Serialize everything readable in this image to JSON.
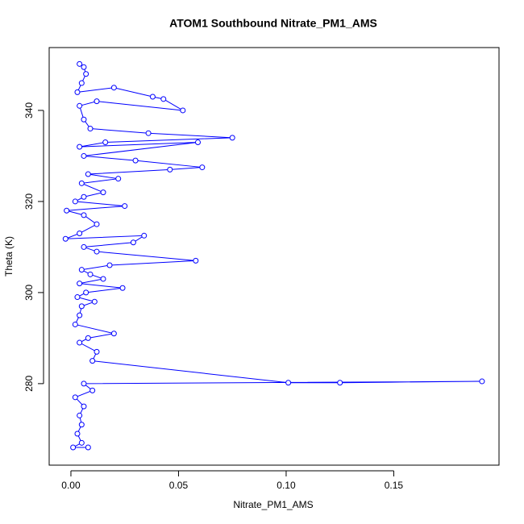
{
  "chart_data": {
    "type": "line",
    "title": "ATOM1 Southbound Nitrate_PM1_AMS",
    "x_label": "Nitrate_PM1_AMS",
    "y_label": "Theta (K)",
    "x": [
      0.004,
      0.006,
      0.007,
      0.005,
      0.003,
      0.02,
      0.038,
      0.043,
      0.052,
      0.012,
      0.004,
      0.006,
      0.009,
      0.036,
      0.075,
      0.016,
      0.004,
      0.059,
      0.006,
      0.03,
      0.061,
      0.046,
      0.008,
      0.022,
      0.005,
      0.015,
      0.006,
      0.002,
      0.025,
      -0.002,
      0.006,
      0.012,
      0.004,
      -0.0025,
      0.034,
      0.029,
      0.006,
      0.012,
      0.058,
      0.018,
      0.005,
      0.009,
      0.015,
      0.004,
      0.024,
      0.007,
      0.003,
      0.011,
      0.005,
      0.004,
      0.002,
      0.02,
      0.008,
      0.004,
      0.012,
      0.01,
      0.101,
      0.125,
      0.191,
      0.006,
      0.01,
      0.002,
      0.006,
      0.004,
      0.005,
      0.003,
      0.005,
      0.001,
      0.008
    ],
    "series": [
      {
        "name": "Nitrate_PM1_AMS",
        "color": "#0000ff",
        "values": [
          350.2,
          349.5,
          348,
          346,
          344,
          345,
          343,
          342.5,
          340,
          342,
          341,
          338,
          336,
          335,
          334,
          333,
          332,
          333,
          330,
          329,
          327.5,
          327,
          326,
          325,
          324,
          322,
          321,
          320,
          319,
          318,
          317,
          315,
          313,
          311.8,
          312.5,
          311,
          310,
          309,
          307,
          306,
          305,
          304,
          303,
          302,
          301,
          300,
          299,
          298,
          297,
          295,
          293,
          291,
          290,
          289,
          287,
          285,
          280.2,
          280.2,
          280.5,
          280,
          278.5,
          277,
          275,
          273,
          271,
          269,
          267,
          266,
          266
        ]
      }
    ],
    "xlim": [
      -0.0101,
      0.1989
    ],
    "ylim": [
      262.1,
      353.8
    ],
    "xticks": [
      {
        "value": 0,
        "label": "0.00"
      },
      {
        "value": 0.05,
        "label": "0.05"
      },
      {
        "value": 0.1,
        "label": "0.10"
      },
      {
        "value": 0.15,
        "label": "0.15"
      }
    ],
    "yticks": [
      280,
      300,
      320,
      340
    ]
  }
}
